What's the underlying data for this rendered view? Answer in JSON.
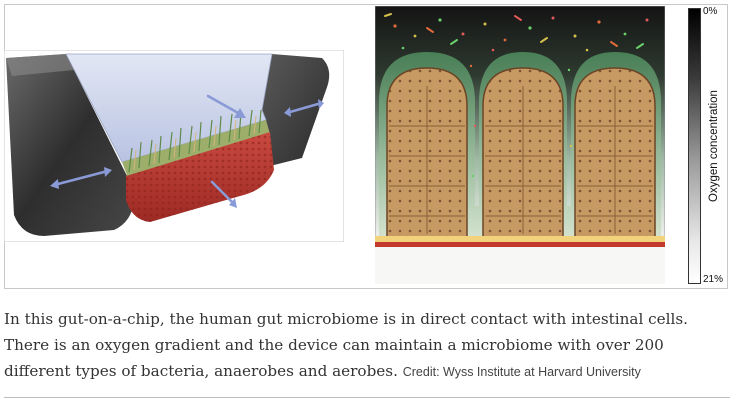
{
  "figure": {
    "scale": {
      "top_label": "0%",
      "bottom_label": "21%",
      "title": "Oxygen concentration"
    }
  },
  "caption": {
    "text": "In this gut-on-a-chip, the human gut microbiome is in direct contact with intestinal cells. There is an oxygen gradient and the device can maintain a microbiome with over 200 different types of bacteria, anaerobes and aerobes.",
    "credit": "Credit: Wyss Institute at Harvard University"
  },
  "colors": {
    "chamber_dark": "#3a3a3a",
    "channel_top": "#c4cde8",
    "tissue_red": "#b8342f",
    "villi_tan": "#c8a06a",
    "mucus_green": "#6e9e78",
    "arrow_blue": "#8a9ad6"
  }
}
